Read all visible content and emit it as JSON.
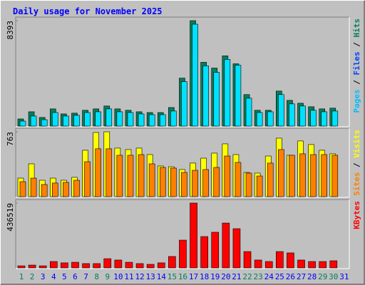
{
  "chart_data": [
    {
      "type": "bar",
      "title": "Daily usage for November 2025",
      "ylim": [
        0,
        8393
      ],
      "yticks": [
        8393
      ],
      "legend": [
        {
          "name": "Pages",
          "color": "#00c0ff"
        },
        {
          "name": "Files",
          "color": "#0040ff"
        },
        {
          "name": "Hits",
          "color": "#00805c"
        }
      ],
      "legend_separator": "/",
      "series": [
        {
          "name": "Hits",
          "color": "#00805c",
          "values": [
            570,
            1140,
            690,
            1370,
            970,
            1030,
            1260,
            1370,
            1600,
            1370,
            1260,
            1140,
            1080,
            1080,
            1480,
            3820,
            8393,
            5080,
            4620,
            5590,
            4960,
            2510,
            1260,
            1260,
            2790,
            2050,
            1820,
            1540,
            1370,
            1430,
            null
          ]
        },
        {
          "name": "Pages",
          "color": "#00e0ff",
          "values": [
            400,
            800,
            510,
            1080,
            800,
            860,
            1080,
            1140,
            1370,
            1140,
            1080,
            970,
            910,
            910,
            1200,
            3540,
            8110,
            4800,
            4280,
            5310,
            4850,
            2220,
            1080,
            1140,
            2510,
            1770,
            1600,
            1260,
            1140,
            1200,
            null
          ]
        }
      ]
    },
    {
      "type": "bar",
      "ylim": [
        0,
        763
      ],
      "yticks": [
        763
      ],
      "legend": [
        {
          "name": "Sites",
          "color": "#ff8000"
        },
        {
          "name": "Visits",
          "color": "#ffff00"
        }
      ],
      "legend_separator": "/",
      "series": [
        {
          "name": "Visits",
          "color": "#ffff00",
          "values": [
            218,
            386,
            193,
            218,
            193,
            227,
            546,
            755,
            763,
            571,
            554,
            571,
            495,
            361,
            352,
            319,
            395,
            453,
            512,
            621,
            495,
            285,
            277,
            478,
            688,
            487,
            655,
            613,
            546,
            504,
            null
          ]
        },
        {
          "name": "Sites",
          "color": "#ff8000",
          "values": [
            176,
            218,
            143,
            160,
            168,
            193,
            411,
            563,
            563,
            487,
            487,
            495,
            386,
            344,
            336,
            285,
            310,
            319,
            344,
            478,
            403,
            277,
            243,
            395,
            554,
            487,
            504,
            495,
            495,
            487,
            null
          ]
        }
      ]
    },
    {
      "type": "bar",
      "ylim": [
        0,
        436519
      ],
      "yticks": [
        436519
      ],
      "legend": [
        {
          "name": "KBytes",
          "color": "#ff0000"
        }
      ],
      "categories": [
        "1",
        "2",
        "3",
        "4",
        "5",
        "6",
        "7",
        "8",
        "9",
        "10",
        "11",
        "12",
        "13",
        "14",
        "15",
        "16",
        "17",
        "18",
        "19",
        "20",
        "21",
        "22",
        "23",
        "24",
        "25",
        "26",
        "27",
        "28",
        "29",
        "30",
        "31"
      ],
      "weekend": [
        true,
        true,
        false,
        false,
        false,
        false,
        false,
        true,
        true,
        false,
        false,
        false,
        false,
        false,
        true,
        true,
        false,
        false,
        false,
        false,
        false,
        true,
        true,
        false,
        false,
        false,
        false,
        false,
        true,
        true,
        false
      ],
      "weekend_color": "#00805c",
      "weekday_color": "#0000ff",
      "series": [
        {
          "name": "KBytes",
          "color": "#ff0000",
          "values": [
            14000,
            19000,
            14000,
            43000,
            34000,
            38000,
            29000,
            29000,
            62000,
            53000,
            38000,
            29000,
            24000,
            34000,
            77000,
            187000,
            436519,
            211000,
            240000,
            302000,
            264000,
            110000,
            53000,
            43000,
            110000,
            101000,
            53000,
            43000,
            43000,
            48000,
            null
          ]
        }
      ]
    }
  ]
}
